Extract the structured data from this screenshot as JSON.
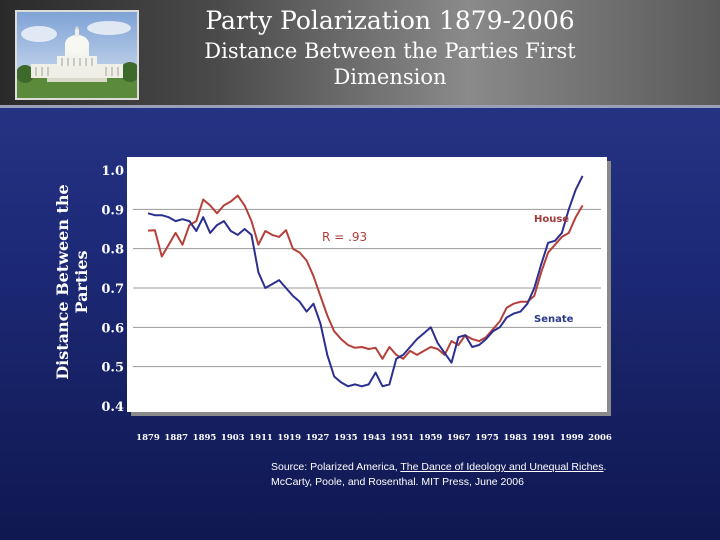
{
  "header": {
    "title": "Party Polarization 1879-2006",
    "subtitle": "Distance Between the Parties First Dimension"
  },
  "source": {
    "prefix": "Source: Polarized America, ",
    "book": "The Dance of Ideology and Unequal Riches",
    "suffix": ". McCarty, Poole, and Rosenthal. MIT Press, June 2006"
  },
  "colors": {
    "house": "#b5403a",
    "senate": "#2b2f8f",
    "background": "#1d2a78"
  },
  "chart_data": {
    "type": "line",
    "ylabel": "Distance Between the Parties",
    "ylim": [
      0.4,
      1.0
    ],
    "yticks": [
      1.0,
      0.9,
      0.8,
      0.7,
      0.6,
      0.5,
      0.4
    ],
    "ytick_labels": [
      "1.0",
      "0.9",
      "0.8",
      "0.7",
      "0.6",
      "0.5",
      "0.4"
    ],
    "xlim": [
      1879,
      2006
    ],
    "xticks": [
      1879,
      1887,
      1895,
      1903,
      1911,
      1919,
      1927,
      1935,
      1943,
      1951,
      1959,
      1967,
      1975,
      1983,
      1991,
      1999,
      2006
    ],
    "xtick_labels": [
      "1879",
      "1887",
      "1895",
      "1903",
      "1911",
      "1919",
      "1927",
      "1935",
      "1943",
      "1951",
      "1959",
      "1967",
      "1975",
      "1983",
      "1991",
      "1999",
      "2006"
    ],
    "grid": true,
    "annotation": "R = .93",
    "series": [
      {
        "name": "House",
        "x": [
          1879,
          1881,
          1883,
          1885,
          1887,
          1889,
          1891,
          1893,
          1895,
          1897,
          1899,
          1901,
          1903,
          1905,
          1907,
          1909,
          1911,
          1913,
          1915,
          1917,
          1919,
          1921,
          1923,
          1925,
          1927,
          1929,
          1931,
          1933,
          1935,
          1937,
          1939,
          1941,
          1943,
          1945,
          1947,
          1949,
          1951,
          1953,
          1955,
          1957,
          1959,
          1961,
          1963,
          1965,
          1967,
          1969,
          1971,
          1973,
          1975,
          1977,
          1979,
          1981,
          1983,
          1985,
          1987,
          1989,
          1991,
          1993,
          1995,
          1997,
          1999,
          2001,
          2003,
          2005
        ],
        "values": [
          0.846,
          0.847,
          0.78,
          0.81,
          0.84,
          0.81,
          0.86,
          0.87,
          0.925,
          0.91,
          0.89,
          0.91,
          0.92,
          0.935,
          0.91,
          0.87,
          0.81,
          0.845,
          0.835,
          0.83,
          0.847,
          0.8,
          0.79,
          0.77,
          0.73,
          0.68,
          0.63,
          0.59,
          0.57,
          0.555,
          0.548,
          0.55,
          0.545,
          0.548,
          0.52,
          0.55,
          0.53,
          0.52,
          0.54,
          0.53,
          0.54,
          0.55,
          0.545,
          0.53,
          0.565,
          0.555,
          0.58,
          0.57,
          0.565,
          0.575,
          0.595,
          0.615,
          0.65,
          0.66,
          0.665,
          0.665,
          0.68,
          0.74,
          0.79,
          0.81,
          0.83,
          0.84,
          0.88,
          0.91
        ]
      },
      {
        "name": "Senate",
        "x": [
          1879,
          1881,
          1883,
          1885,
          1887,
          1889,
          1891,
          1893,
          1895,
          1897,
          1899,
          1901,
          1903,
          1905,
          1907,
          1909,
          1911,
          1913,
          1915,
          1917,
          1919,
          1921,
          1923,
          1925,
          1927,
          1929,
          1931,
          1933,
          1935,
          1937,
          1939,
          1941,
          1943,
          1945,
          1947,
          1949,
          1951,
          1953,
          1955,
          1957,
          1959,
          1961,
          1963,
          1965,
          1967,
          1969,
          1971,
          1973,
          1975,
          1977,
          1979,
          1981,
          1983,
          1985,
          1987,
          1989,
          1991,
          1993,
          1995,
          1997,
          1999,
          2001,
          2003,
          2005
        ],
        "values": [
          0.89,
          0.885,
          0.885,
          0.88,
          0.87,
          0.875,
          0.87,
          0.845,
          0.88,
          0.84,
          0.86,
          0.87,
          0.845,
          0.835,
          0.85,
          0.835,
          0.74,
          0.7,
          0.71,
          0.72,
          0.7,
          0.68,
          0.665,
          0.64,
          0.66,
          0.61,
          0.53,
          0.475,
          0.46,
          0.45,
          0.455,
          0.45,
          0.455,
          0.485,
          0.45,
          0.455,
          0.52,
          0.53,
          0.55,
          0.57,
          0.585,
          0.6,
          0.56,
          0.535,
          0.51,
          0.575,
          0.58,
          0.55,
          0.555,
          0.57,
          0.59,
          0.6,
          0.625,
          0.635,
          0.64,
          0.66,
          0.7,
          0.76,
          0.815,
          0.82,
          0.84,
          0.9,
          0.95,
          0.985
        ]
      }
    ]
  }
}
